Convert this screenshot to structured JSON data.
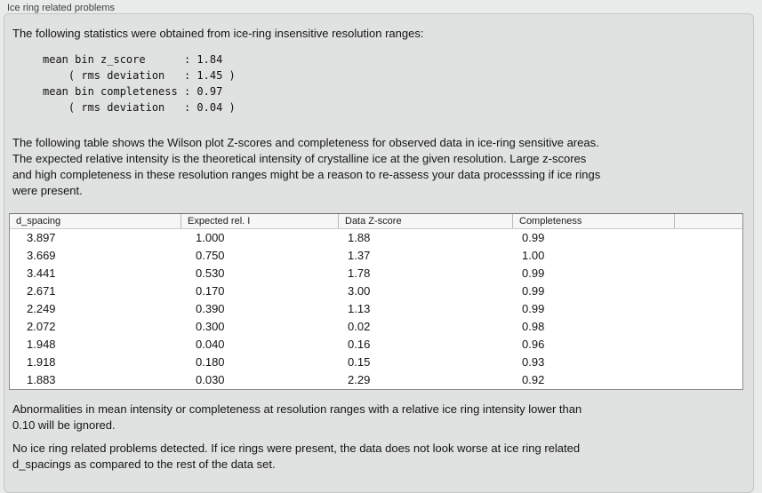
{
  "panel": {
    "title": "Ice ring related problems"
  },
  "sections": {
    "intro": "The following statistics were obtained from ice-ring insensitive resolution ranges:",
    "stats_block": "mean bin z_score      : 1.84\n    ( rms deviation   : 1.45 )\nmean bin completeness : 0.97\n    ( rms deviation   : 0.04 )",
    "table_description": "The following table shows the Wilson plot Z-scores and completeness for observed data in ice-ring sensitive areas.\nThe expected relative intensity is the theoretical intensity of crystalline ice at the given resolution. Large z-scores\nand high completeness in these resolution ranges might be a reason to re-assess your data processsing if ice rings\nwere present.",
    "ignore_note": "Abnormalities in mean intensity or completeness at resolution ranges with a relative ice ring intensity lower than\n0.10 will be ignored.",
    "conclusion": "No ice ring related problems detected. If ice rings were present, the data does not look worse at ice ring related\nd_spacings as compared to the rest of the data set."
  },
  "stats": {
    "mean_bin_z_score": "1.84",
    "z_score_rms_deviation": "1.45",
    "mean_bin_completeness": "0.97",
    "completeness_rms_deviation": "0.04"
  },
  "table": {
    "columns": [
      "d_spacing",
      "Expected rel. I",
      "Data Z-score",
      "Completeness"
    ],
    "rows": [
      [
        "3.897",
        "1.000",
        "1.88",
        "0.99"
      ],
      [
        "3.669",
        "0.750",
        "1.37",
        "1.00"
      ],
      [
        "3.441",
        "0.530",
        "1.78",
        "0.99"
      ],
      [
        "2.671",
        "0.170",
        "3.00",
        "0.99"
      ],
      [
        "2.249",
        "0.390",
        "1.13",
        "0.99"
      ],
      [
        "2.072",
        "0.300",
        "0.02",
        "0.98"
      ],
      [
        "1.948",
        "0.040",
        "0.16",
        "0.96"
      ],
      [
        "1.918",
        "0.180",
        "0.15",
        "0.93"
      ],
      [
        "1.883",
        "0.030",
        "2.29",
        "0.92"
      ]
    ]
  },
  "colors": {
    "page_bg": "#e9eaea",
    "panel_bg": "#e0e1e1",
    "panel_border": "#c4c5c5",
    "table_bg": "#ffffff",
    "table_border": "#8c8c8c",
    "table_header_bg": "#f6f6f6",
    "text": "#141414"
  }
}
